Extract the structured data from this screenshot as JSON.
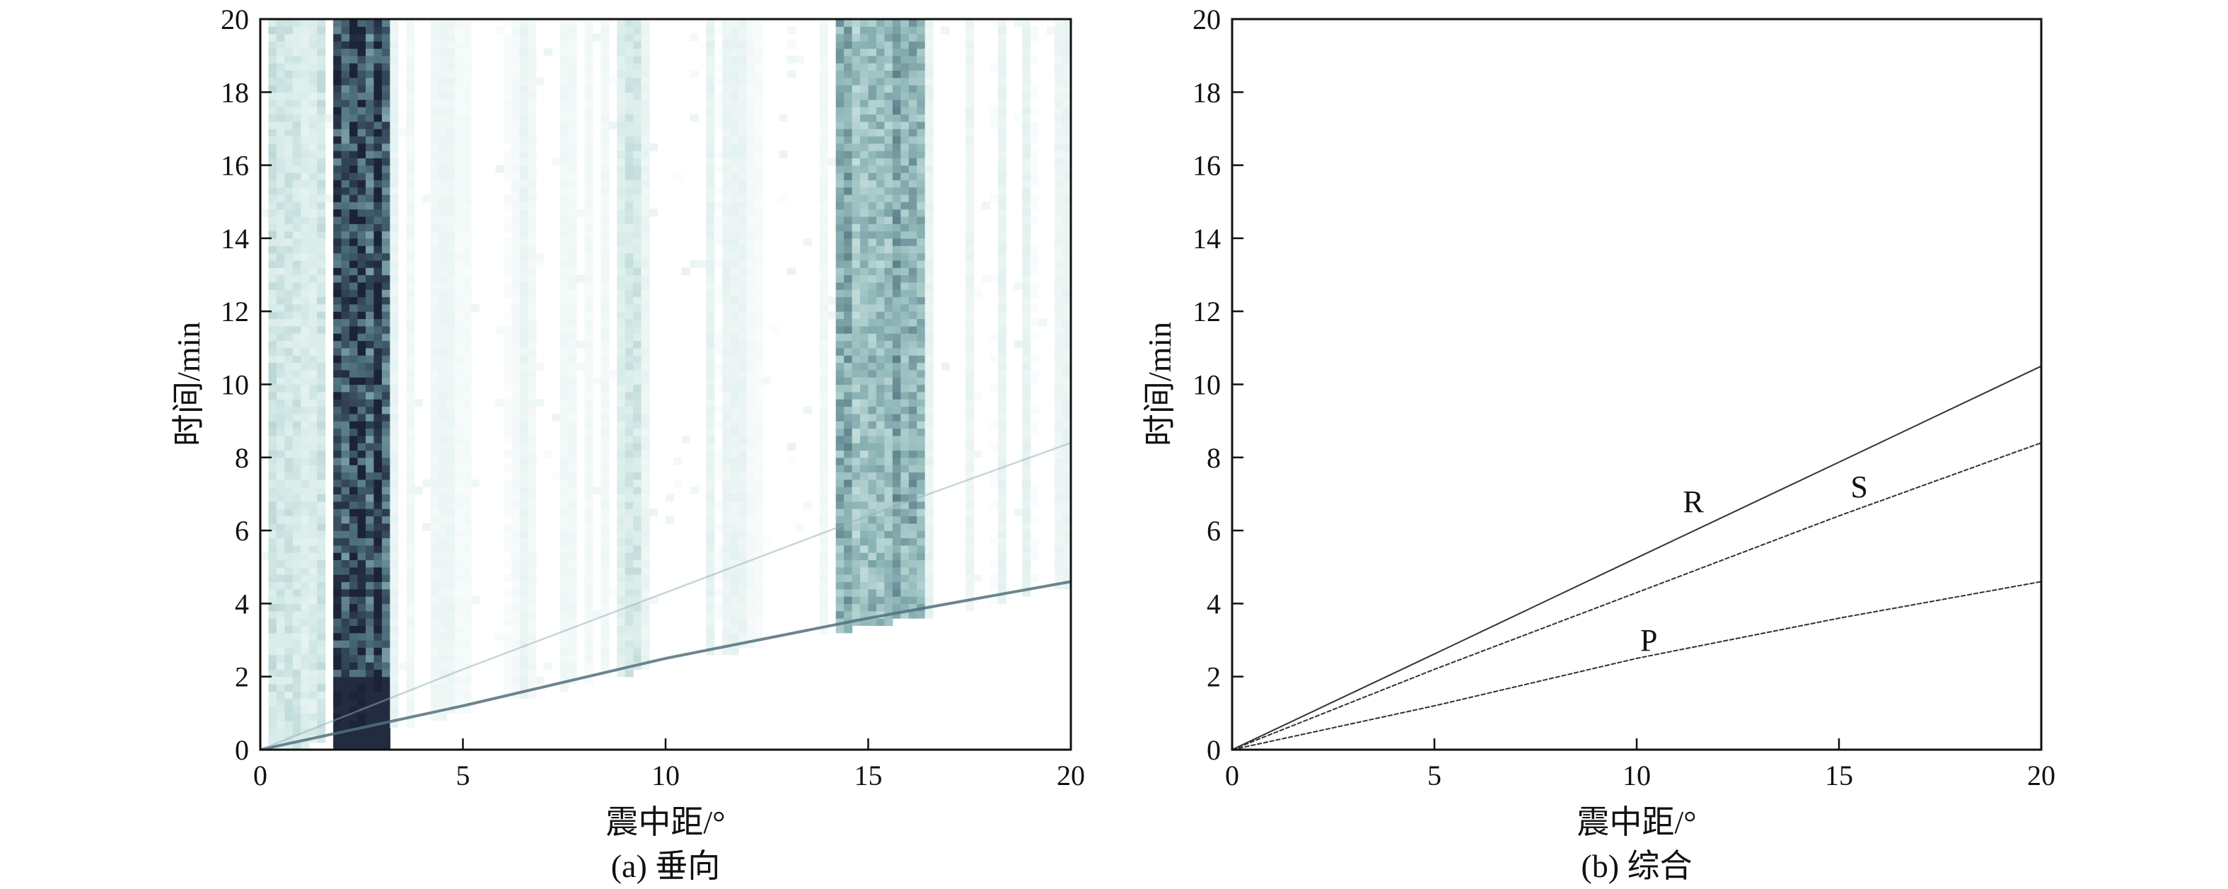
{
  "chart_data": [
    {
      "type": "heatmap",
      "caption": "(a) 垂向",
      "xlabel": "震中距/°",
      "ylabel": "时间/min",
      "xlim": [
        0,
        20
      ],
      "ylim": [
        0,
        20
      ],
      "xticks": [
        "0",
        "5",
        "10",
        "15",
        "20"
      ],
      "yticks": [
        "0",
        "2",
        "4",
        "6",
        "8",
        "10",
        "12",
        "14",
        "16",
        "18",
        "20"
      ],
      "colormap": [
        "#ffffff",
        "#d8ecea",
        "#8fb7b8",
        "#4a6b7a",
        "#1c2238"
      ],
      "high_energy_bands": [
        {
          "x_range": [
            1.8,
            3.2
          ],
          "level": "very high",
          "peak_time_range": [
            0,
            2
          ]
        },
        {
          "x_range": [
            14.2,
            16.4
          ],
          "level": "moderate"
        },
        {
          "x_range": [
            8.8,
            9.3
          ],
          "level": "low"
        },
        {
          "x_range": [
            0.2,
            1.6
          ],
          "level": "low"
        }
      ],
      "visible_arrivals": [
        {
          "phase": "P",
          "points": [
            [
              0,
              0
            ],
            [
              5,
              1.2
            ],
            [
              10,
              2.5
            ],
            [
              15,
              3.6
            ],
            [
              20,
              4.6
            ]
          ]
        },
        {
          "phase": "S",
          "points": [
            [
              0,
              0
            ],
            [
              5,
              2.2
            ],
            [
              10,
              4.3
            ],
            [
              15,
              6.4
            ],
            [
              20,
              8.4
            ]
          ]
        }
      ]
    },
    {
      "type": "line",
      "caption": "(b) 综合",
      "xlabel": "震中距/°",
      "ylabel": "时间/min",
      "xlim": [
        0,
        20
      ],
      "ylim": [
        0,
        20
      ],
      "xticks": [
        "0",
        "5",
        "10",
        "15",
        "20"
      ],
      "yticks": [
        "0",
        "2",
        "4",
        "6",
        "8",
        "10",
        "12",
        "14",
        "16",
        "18",
        "20"
      ],
      "series": [
        {
          "name": "R",
          "x": [
            0,
            5,
            10,
            15,
            20
          ],
          "y": [
            0,
            2.62,
            5.25,
            7.87,
            10.5
          ],
          "label_at": [
            11.4,
            6.8
          ]
        },
        {
          "name": "S",
          "x": [
            0,
            5,
            10,
            15,
            20
          ],
          "y": [
            0,
            2.2,
            4.3,
            6.4,
            8.4
          ],
          "label_at": [
            15.5,
            7.2
          ]
        },
        {
          "name": "P",
          "x": [
            0,
            5,
            10,
            15,
            20
          ],
          "y": [
            0,
            1.2,
            2.5,
            3.6,
            4.6
          ],
          "label_at": [
            10.3,
            3.0
          ]
        }
      ]
    }
  ]
}
